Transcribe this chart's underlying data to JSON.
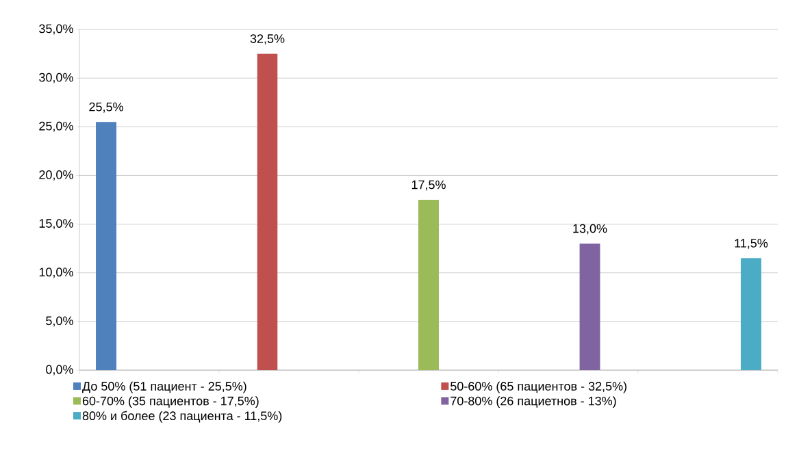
{
  "chart_data": {
    "type": "bar",
    "categories": [
      null,
      null,
      null,
      null,
      null
    ],
    "series": [
      {
        "name": "До 50% (51 пациент - 25,5%)",
        "color": "#4f81bd",
        "values": [
          25.5,
          null,
          null,
          null,
          null
        ],
        "value_labels": [
          "25,5%",
          null,
          null,
          null,
          null
        ]
      },
      {
        "name": "50-60% (65 пациентов - 32,5%)",
        "color": "#c0504d",
        "values": [
          null,
          32.5,
          null,
          null,
          null
        ],
        "value_labels": [
          null,
          "32,5%",
          null,
          null,
          null
        ]
      },
      {
        "name": "60-70% (35 пациентов - 17,5%)",
        "color": "#9bbb59",
        "values": [
          null,
          null,
          17.5,
          null,
          null
        ],
        "value_labels": [
          null,
          null,
          "17,5%",
          null,
          null
        ]
      },
      {
        "name": "70-80% (26 пациетнов - 13%)",
        "color": "#8064a2",
        "values": [
          null,
          null,
          null,
          13.0,
          null
        ],
        "value_labels": [
          null,
          null,
          null,
          "13,0%",
          null
        ]
      },
      {
        "name": "80% и более (23 пациента - 11,5%)",
        "color": "#4bacc6",
        "values": [
          null,
          null,
          null,
          null,
          11.5
        ],
        "value_labels": [
          null,
          null,
          null,
          null,
          "11,5%"
        ]
      }
    ],
    "ylim": [
      0,
      35
    ],
    "yticks": [
      {
        "value": 0,
        "label": "0,0%"
      },
      {
        "value": 5,
        "label": "5,0%"
      },
      {
        "value": 10,
        "label": "10,0%"
      },
      {
        "value": 15,
        "label": "15,0%"
      },
      {
        "value": 20,
        "label": "20,0%"
      },
      {
        "value": 25,
        "label": "25,0%"
      },
      {
        "value": 30,
        "label": "30,0%"
      },
      {
        "value": 35,
        "label": "35,0%"
      }
    ],
    "grid": "y",
    "legend": "bottom"
  }
}
